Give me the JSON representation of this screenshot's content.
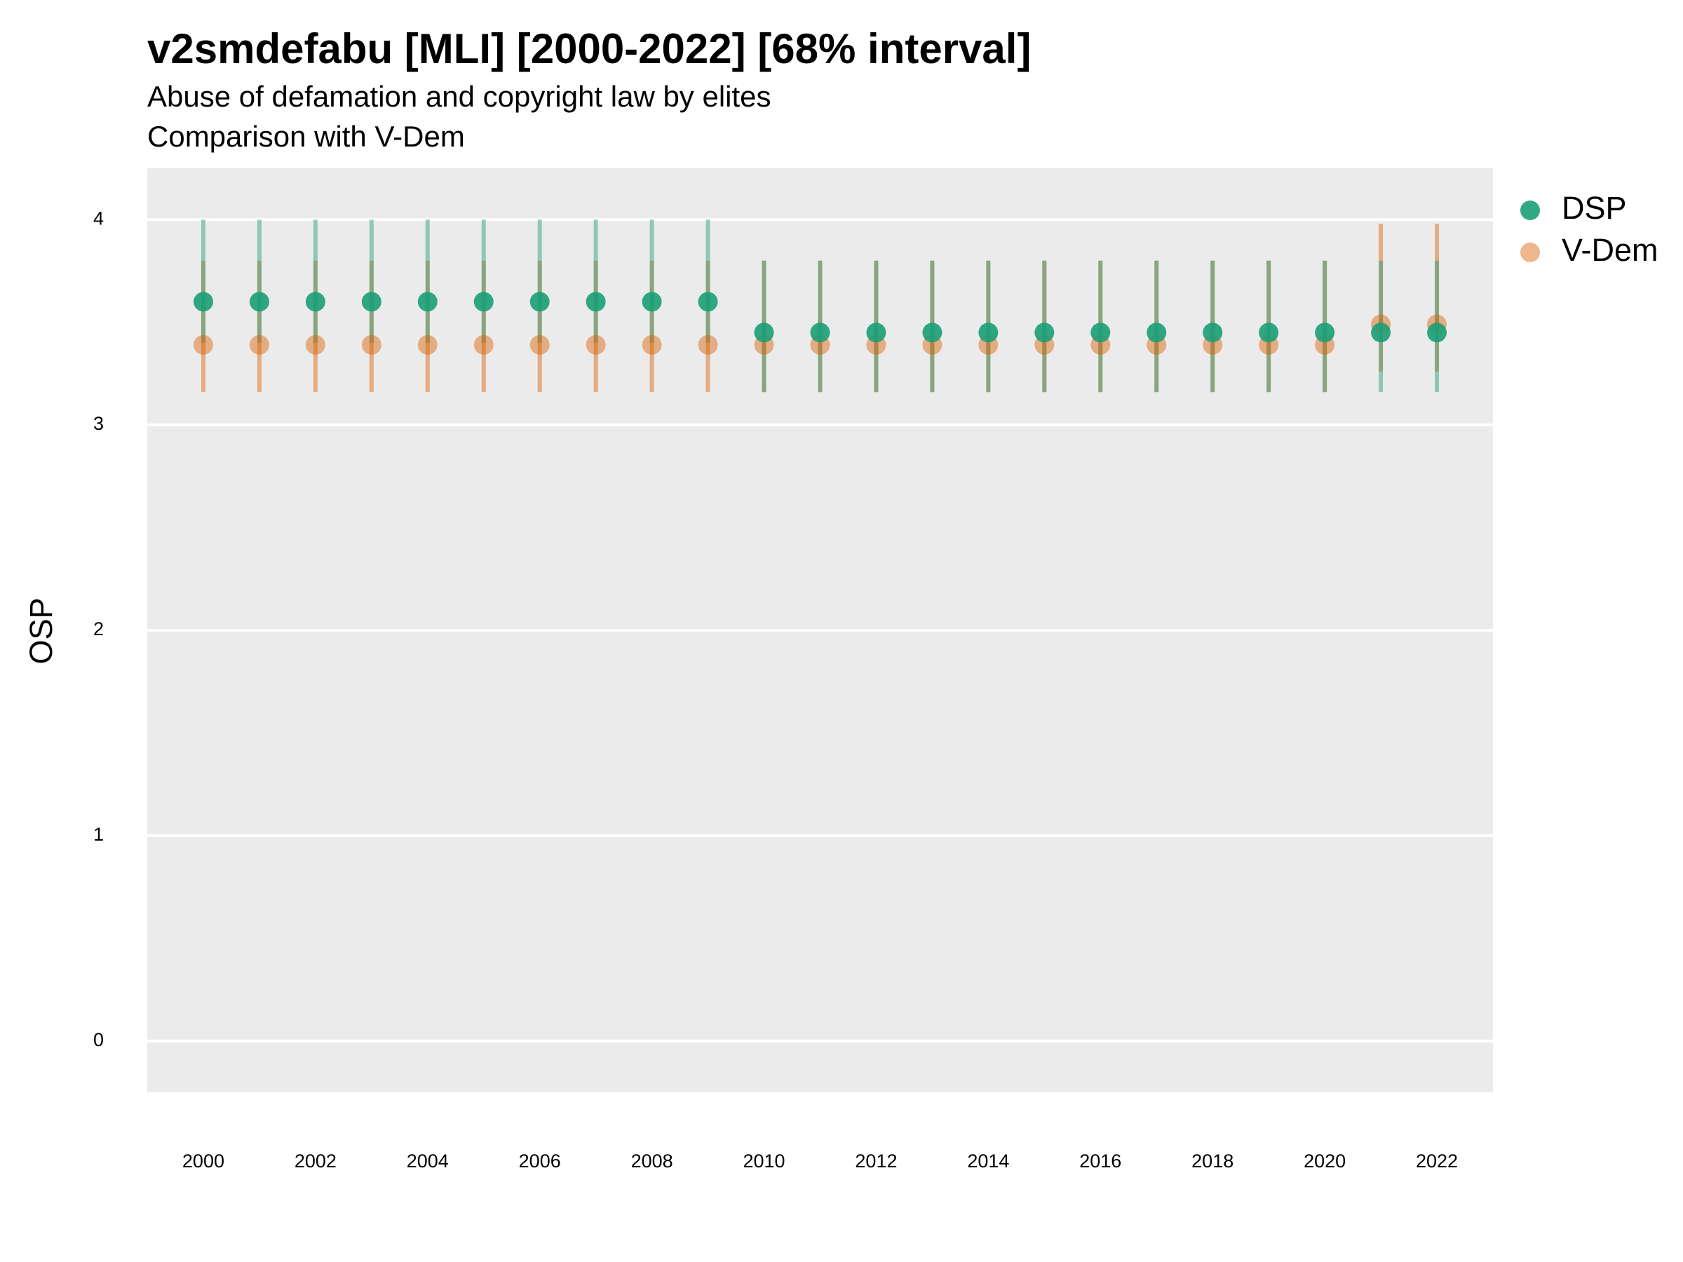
{
  "chart_data": {
    "type": "errorbar",
    "title": "v2smdefabu [MLI] [2000-2022] [68% interval]",
    "subtitle": [
      "Abuse of defamation and copyright law by elites",
      "Comparison with V-Dem"
    ],
    "y_label": "OSP",
    "x": [
      2000,
      2001,
      2002,
      2003,
      2004,
      2005,
      2006,
      2007,
      2008,
      2009,
      2010,
      2011,
      2012,
      2013,
      2014,
      2015,
      2016,
      2017,
      2018,
      2019,
      2020,
      2021,
      2022
    ],
    "series": [
      {
        "name": "V-Dem",
        "color": "#d95f02",
        "values": [
          3.39,
          3.39,
          3.39,
          3.39,
          3.39,
          3.39,
          3.39,
          3.39,
          3.39,
          3.39,
          3.39,
          3.39,
          3.39,
          3.39,
          3.39,
          3.39,
          3.39,
          3.39,
          3.39,
          3.39,
          3.39,
          3.49,
          3.49
        ],
        "lower": [
          3.16,
          3.16,
          3.16,
          3.16,
          3.16,
          3.16,
          3.16,
          3.16,
          3.16,
          3.16,
          3.16,
          3.16,
          3.16,
          3.16,
          3.16,
          3.16,
          3.16,
          3.16,
          3.16,
          3.16,
          3.16,
          3.26,
          3.26
        ],
        "upper": [
          3.8,
          3.8,
          3.8,
          3.8,
          3.8,
          3.8,
          3.8,
          3.8,
          3.8,
          3.8,
          3.8,
          3.8,
          3.8,
          3.8,
          3.8,
          3.8,
          3.8,
          3.8,
          3.8,
          3.8,
          3.8,
          3.98,
          3.98
        ]
      },
      {
        "name": "DSP",
        "color": "#1b9e77",
        "values": [
          3.6,
          3.6,
          3.6,
          3.6,
          3.6,
          3.6,
          3.6,
          3.6,
          3.6,
          3.6,
          3.45,
          3.45,
          3.45,
          3.45,
          3.45,
          3.45,
          3.45,
          3.45,
          3.45,
          3.45,
          3.45,
          3.45,
          3.45
        ],
        "lower": [
          3.4,
          3.4,
          3.4,
          3.4,
          3.4,
          3.4,
          3.4,
          3.4,
          3.4,
          3.4,
          3.16,
          3.16,
          3.16,
          3.16,
          3.16,
          3.16,
          3.16,
          3.16,
          3.16,
          3.16,
          3.16,
          3.16,
          3.16
        ],
        "upper": [
          4.0,
          4.0,
          4.0,
          4.0,
          4.0,
          4.0,
          4.0,
          4.0,
          4.0,
          4.0,
          3.8,
          3.8,
          3.8,
          3.8,
          3.8,
          3.8,
          3.8,
          3.8,
          3.8,
          3.8,
          3.8,
          3.8,
          3.8
        ]
      }
    ],
    "legend_order": [
      1,
      0
    ],
    "xlim": [
      1999,
      2023
    ],
    "xticks": [
      2000,
      2002,
      2004,
      2006,
      2008,
      2010,
      2012,
      2014,
      2016,
      2018,
      2020,
      2022
    ],
    "ylim": [
      -0.25,
      4.25
    ],
    "yticks": [
      0,
      1,
      2,
      3,
      4
    ],
    "grid": true,
    "legend": "right"
  }
}
